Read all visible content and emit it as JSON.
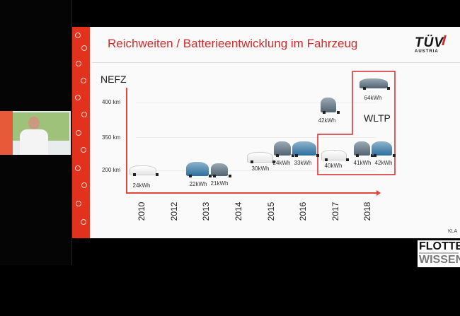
{
  "slide": {
    "title": "Reichweiten / Batterieentwicklung im Fahrzeug",
    "logo": {
      "main": "TÜV",
      "sub": "AUSTRIA"
    },
    "accent_color": "#d22a2a",
    "footer_text": "KLA",
    "y_axis_label": "NEFZ",
    "y_ticks": [
      "400 km",
      "350 km",
      "200 km"
    ],
    "years": [
      "2010",
      "2012",
      "2013",
      "2014",
      "2015",
      "2016",
      "2017",
      "2018"
    ],
    "box_label": "WLTP",
    "batteries": [
      {
        "year": "2010",
        "capacity": "24kWh"
      },
      {
        "year": "2013",
        "capacity": "22kWh"
      },
      {
        "year": "2013",
        "capacity": "21kWh"
      },
      {
        "year": "2015",
        "capacity": "30kWh"
      },
      {
        "year": "2015",
        "capacity": "24kWh"
      },
      {
        "year": "2016",
        "capacity": "33kWh"
      },
      {
        "year": "2017",
        "capacity": "42kWh"
      },
      {
        "year": "2017",
        "capacity": "40kWh"
      },
      {
        "year": "2018",
        "capacity": "64kWh"
      },
      {
        "year": "2018",
        "capacity": "41kWh"
      },
      {
        "year": "2018",
        "capacity": "42kWh"
      }
    ]
  },
  "overlay_logo": {
    "line1": "FLOTTE",
    "line2": "WISSEN"
  }
}
